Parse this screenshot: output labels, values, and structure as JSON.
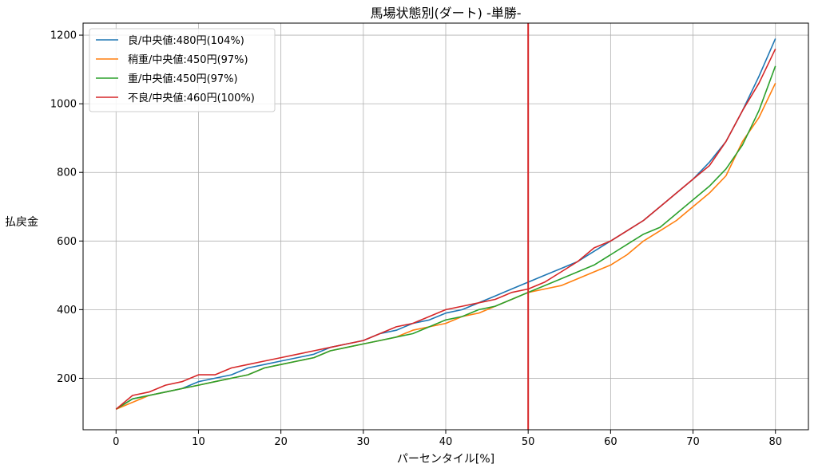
{
  "chart_data": {
    "type": "line",
    "title": "馬場状態別(ダート) -単勝-",
    "xlabel": "パーセンタイル[%]",
    "ylabel": "払戻金",
    "xlim": [
      -4,
      84
    ],
    "ylim": [
      50,
      1235
    ],
    "xticks": [
      0,
      10,
      20,
      30,
      40,
      50,
      60,
      70,
      80
    ],
    "yticks": [
      200,
      400,
      600,
      800,
      1000,
      1200
    ],
    "grid": true,
    "legend_position": "top-left",
    "vline": {
      "x": 50,
      "color": "#d62728"
    },
    "series": [
      {
        "name": "良/中央値:480円(104%)",
        "color": "#1f77b4",
        "x": [
          0,
          2,
          4,
          6,
          8,
          10,
          12,
          14,
          16,
          18,
          20,
          22,
          24,
          26,
          28,
          30,
          32,
          34,
          36,
          38,
          40,
          42,
          44,
          46,
          48,
          50,
          52,
          54,
          56,
          58,
          60,
          62,
          64,
          66,
          68,
          70,
          72,
          74,
          76,
          78,
          80
        ],
        "y": [
          110,
          140,
          150,
          160,
          170,
          190,
          200,
          210,
          230,
          240,
          250,
          260,
          270,
          290,
          300,
          310,
          330,
          340,
          360,
          370,
          390,
          400,
          420,
          440,
          460,
          480,
          500,
          520,
          540,
          570,
          600,
          630,
          660,
          700,
          740,
          780,
          830,
          890,
          980,
          1080,
          1190
        ]
      },
      {
        "name": "稍重/中央値:450円(97%)",
        "color": "#ff7f0e",
        "x": [
          0,
          2,
          4,
          6,
          8,
          10,
          12,
          14,
          16,
          18,
          20,
          22,
          24,
          26,
          28,
          30,
          32,
          34,
          36,
          38,
          40,
          42,
          44,
          46,
          48,
          50,
          52,
          54,
          56,
          58,
          60,
          62,
          64,
          66,
          68,
          70,
          72,
          74,
          76,
          78,
          80
        ],
        "y": [
          110,
          130,
          150,
          160,
          170,
          180,
          190,
          200,
          210,
          230,
          240,
          250,
          260,
          280,
          290,
          300,
          310,
          320,
          340,
          350,
          360,
          380,
          390,
          410,
          430,
          450,
          460,
          470,
          490,
          510,
          530,
          560,
          600,
          630,
          660,
          700,
          740,
          790,
          890,
          960,
          1060
        ]
      },
      {
        "name": "重/中央値:450円(97%)",
        "color": "#2ca02c",
        "x": [
          0,
          2,
          4,
          6,
          8,
          10,
          12,
          14,
          16,
          18,
          20,
          22,
          24,
          26,
          28,
          30,
          32,
          34,
          36,
          38,
          40,
          42,
          44,
          46,
          48,
          50,
          52,
          54,
          56,
          58,
          60,
          62,
          64,
          66,
          68,
          70,
          72,
          74,
          76,
          78,
          80
        ],
        "y": [
          110,
          140,
          150,
          160,
          170,
          180,
          190,
          200,
          210,
          230,
          240,
          250,
          260,
          280,
          290,
          300,
          310,
          320,
          330,
          350,
          370,
          380,
          400,
          410,
          430,
          450,
          470,
          490,
          510,
          530,
          560,
          590,
          620,
          640,
          680,
          720,
          760,
          810,
          880,
          980,
          1110
        ]
      },
      {
        "name": "不良/中央値:460円(100%)",
        "color": "#d62728",
        "x": [
          0,
          2,
          4,
          6,
          8,
          10,
          12,
          14,
          16,
          18,
          20,
          22,
          24,
          26,
          28,
          30,
          32,
          34,
          36,
          38,
          40,
          42,
          44,
          46,
          48,
          50,
          52,
          54,
          56,
          58,
          60,
          62,
          64,
          66,
          68,
          70,
          72,
          74,
          76,
          78,
          80
        ],
        "y": [
          110,
          150,
          160,
          180,
          190,
          210,
          210,
          230,
          240,
          250,
          260,
          270,
          280,
          290,
          300,
          310,
          330,
          350,
          360,
          380,
          400,
          410,
          420,
          430,
          450,
          460,
          480,
          510,
          540,
          580,
          600,
          630,
          660,
          700,
          740,
          780,
          820,
          890,
          980,
          1060,
          1160
        ]
      }
    ]
  }
}
